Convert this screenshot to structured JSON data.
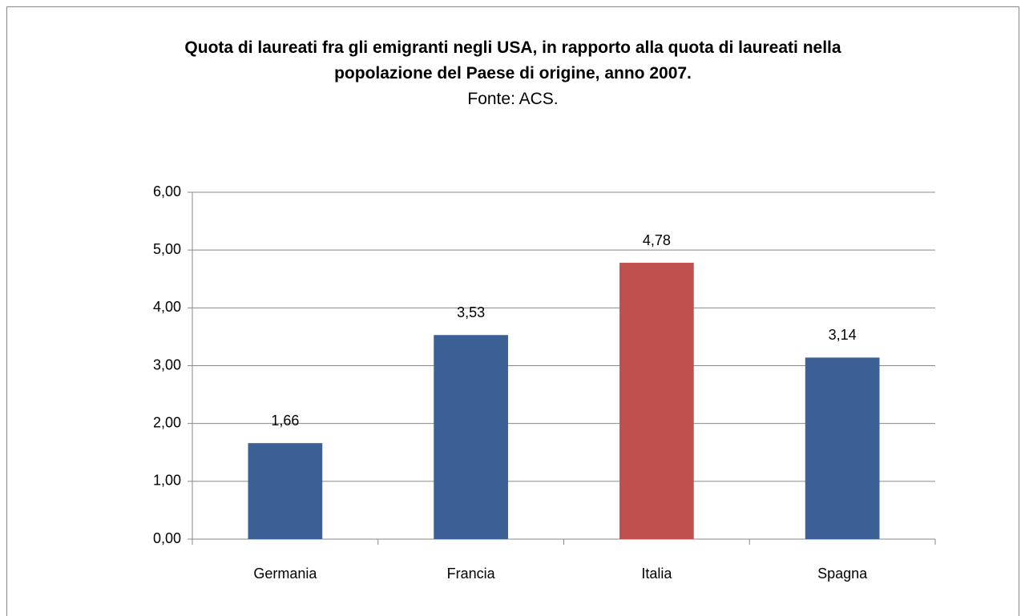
{
  "chart_data": {
    "type": "bar",
    "title": "Quota di laureati fra gli emigranti negli USA, in rapporto alla quota di laureati nella popolazione del Paese di origine, anno 2007.",
    "subtitle": "Fonte: ACS.",
    "categories": [
      "Germania",
      "Francia",
      "Italia",
      "Spagna"
    ],
    "values": [
      1.66,
      3.53,
      4.78,
      3.14
    ],
    "value_labels": [
      "1,66",
      "3,53",
      "4,78",
      "3,14"
    ],
    "colors": [
      "#3a6095",
      "#3a6095",
      "#c0504d",
      "#3a6095"
    ],
    "ylim": [
      0,
      6
    ],
    "yticks": [
      {
        "value": 0,
        "label": "0,00"
      },
      {
        "value": 1,
        "label": "1,00"
      },
      {
        "value": 2,
        "label": "2,00"
      },
      {
        "value": 3,
        "label": "3,00"
      },
      {
        "value": 4,
        "label": "4,00"
      },
      {
        "value": 5,
        "label": "5,00"
      },
      {
        "value": 6,
        "label": "6,00"
      }
    ],
    "grid": true
  }
}
